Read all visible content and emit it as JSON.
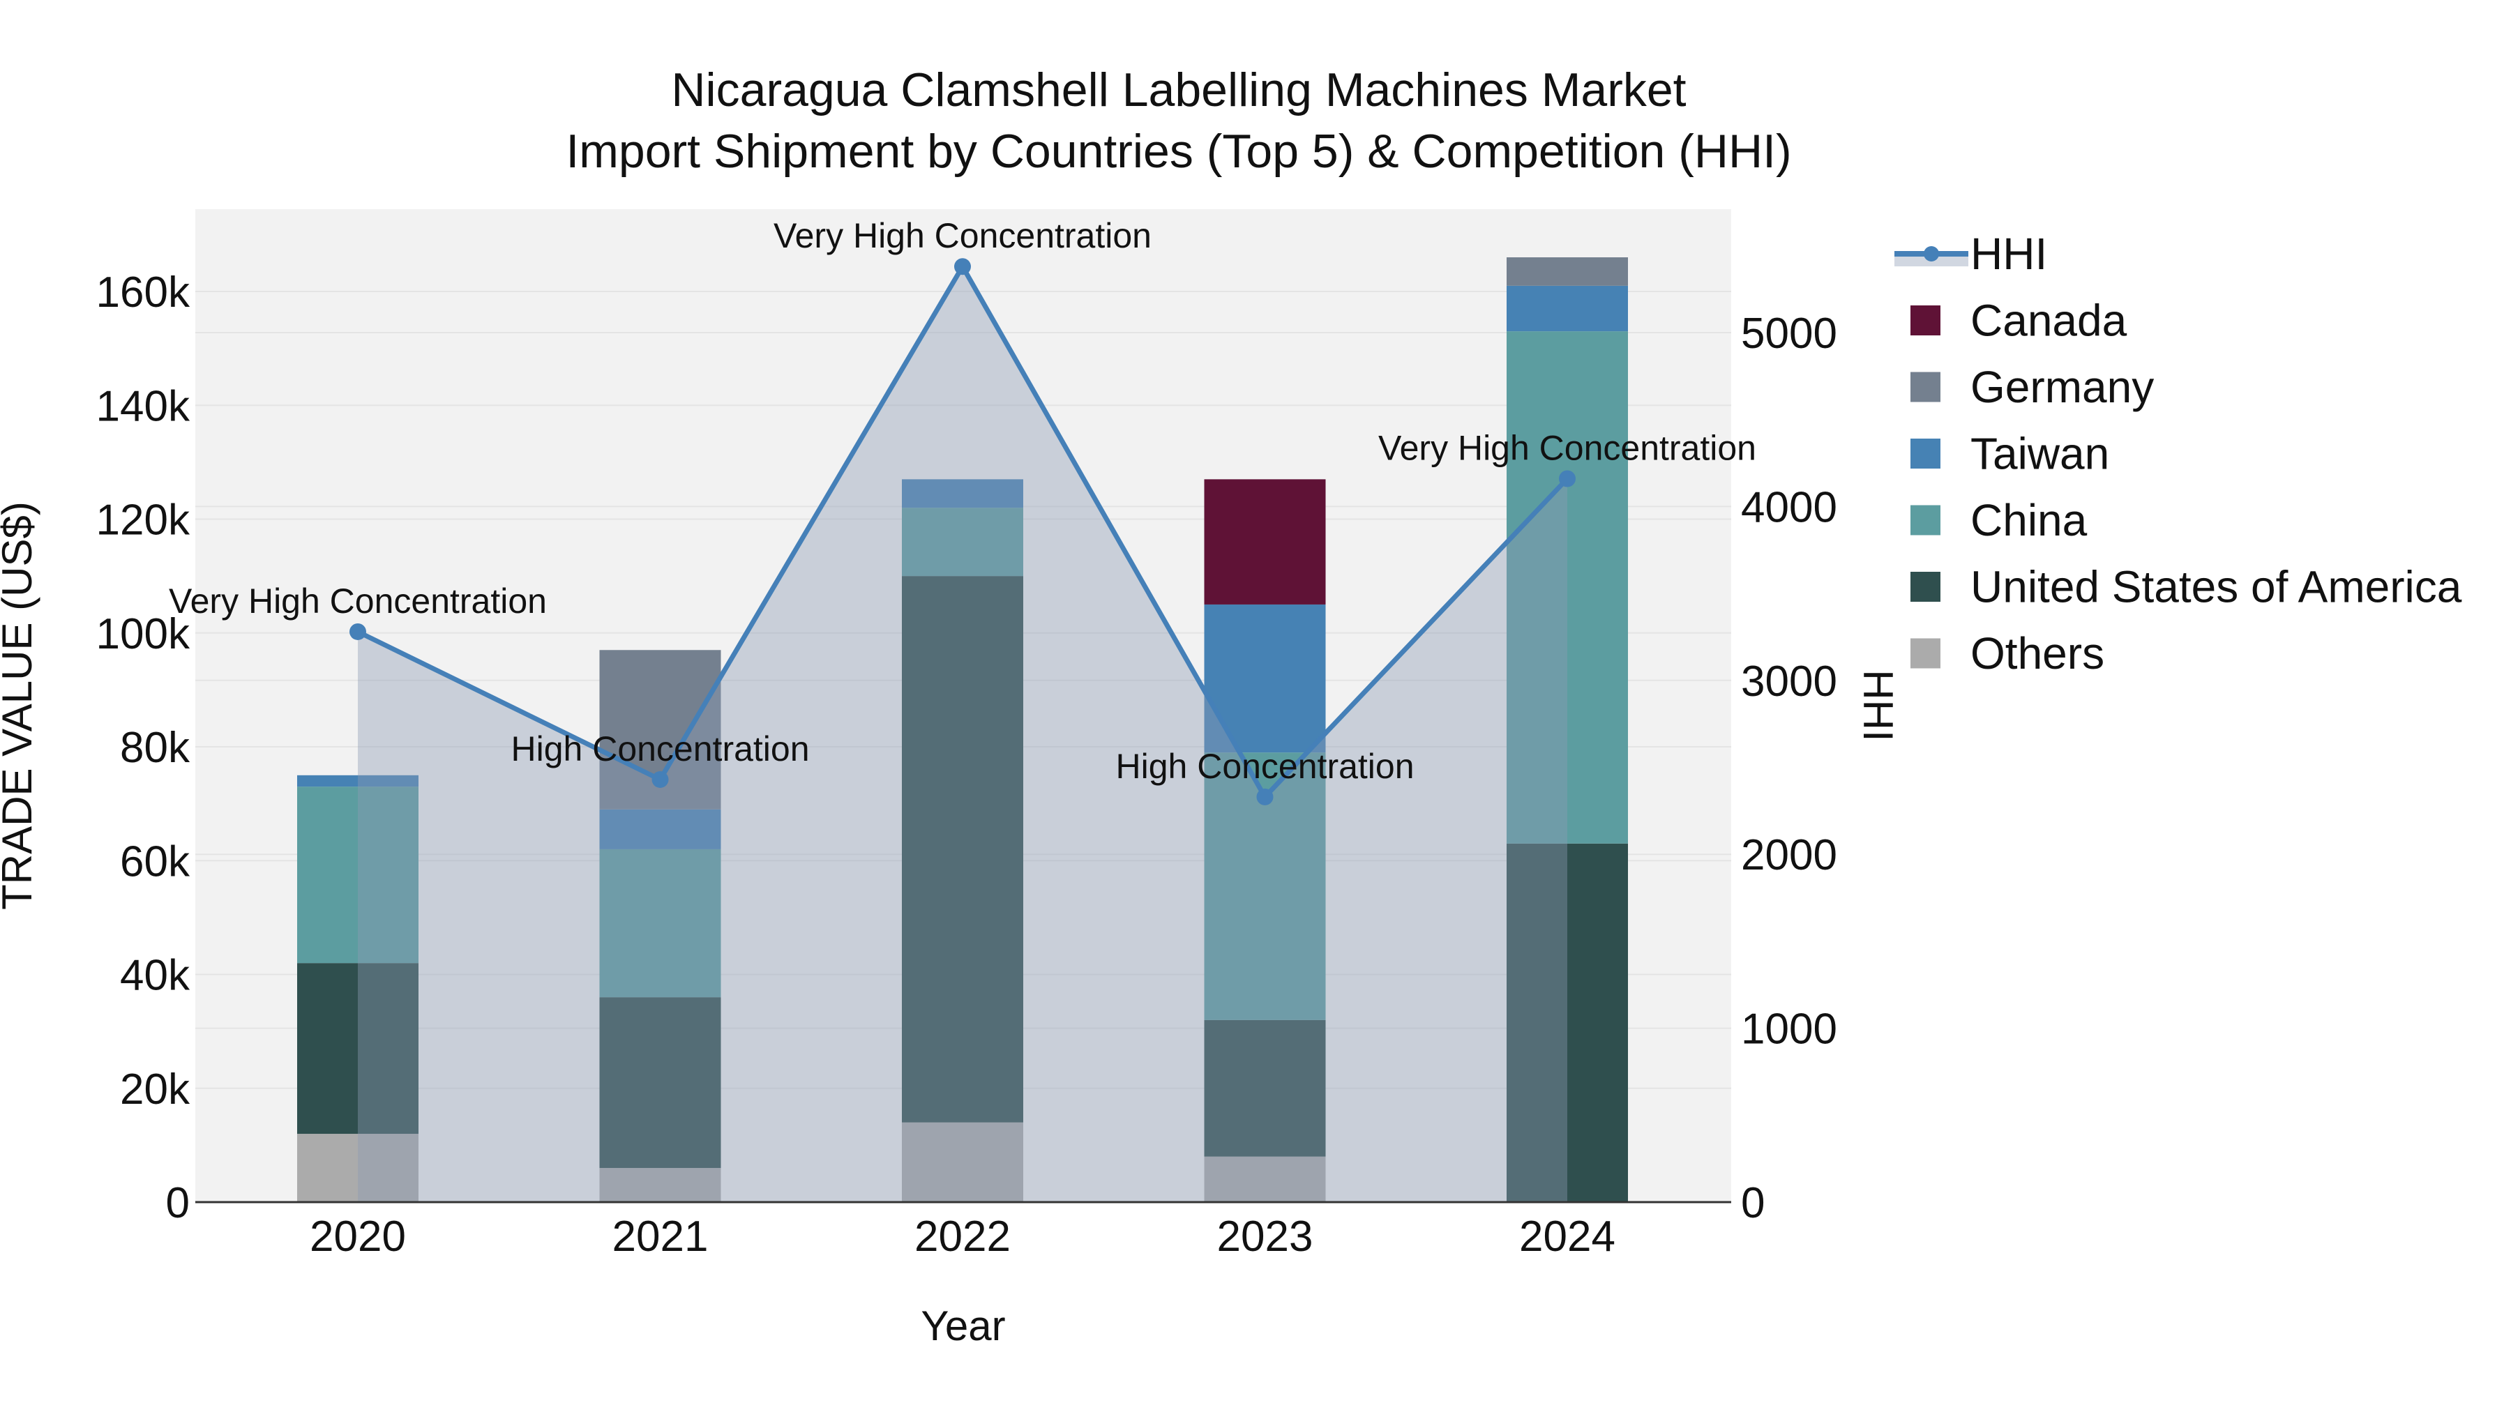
{
  "title": {
    "line1": "Nicaragua Clamshell Labelling Machines Market",
    "line2": "Import Shipment by Countries (Top 5) & Competition (HHI)"
  },
  "chart_data": {
    "type": "bar+line",
    "categories": [
      "2020",
      "2021",
      "2022",
      "2023",
      "2024"
    ],
    "x": {
      "title": "Year"
    },
    "y_left": {
      "title": "TRADE VALUE (US$)",
      "ticks": [
        0,
        20000,
        40000,
        60000,
        80000,
        100000,
        120000,
        140000,
        160000
      ],
      "tick_labels": [
        "0",
        "20k",
        "40k",
        "60k",
        "80k",
        "100k",
        "120k",
        "140k",
        "160k"
      ],
      "min": 0,
      "max": 174500,
      "grid": true
    },
    "y_right": {
      "title": "HHI",
      "ticks": [
        0,
        1000,
        2000,
        3000,
        4000,
        5000
      ],
      "tick_labels": [
        "0",
        "1000",
        "2000",
        "3000",
        "4000",
        "5000"
      ],
      "min": 0,
      "max": 5710,
      "grid": true
    },
    "series": [
      {
        "name": "Others",
        "color": "#ababab",
        "values": [
          12000,
          6000,
          14000,
          8000,
          0
        ]
      },
      {
        "name": "United States of America",
        "color": "#2f4f4e",
        "values": [
          30000,
          30000,
          96000,
          24000,
          63000
        ]
      },
      {
        "name": "China",
        "color": "#5c9da0",
        "values": [
          31000,
          26000,
          12000,
          47000,
          90000
        ]
      },
      {
        "name": "Taiwan",
        "color": "#4682b4",
        "values": [
          2000,
          7000,
          5000,
          26000,
          8000
        ]
      },
      {
        "name": "Germany",
        "color": "#74808f",
        "values": [
          0,
          28000,
          0,
          0,
          5000
        ]
      },
      {
        "name": "Canada",
        "color": "#5f1236",
        "values": [
          0,
          0,
          0,
          22000,
          0
        ]
      }
    ],
    "bar_totals": [
      75000,
      97000,
      127000,
      127000,
      166000
    ],
    "line": {
      "name": "HHI",
      "color": "#4580b8",
      "fill_color": "rgba(140,155,180,0.40)",
      "values": [
        3280,
        2430,
        5380,
        2330,
        4160
      ]
    },
    "annotations": [
      "Very High Concentration",
      "High Concentration",
      "Very High Concentration",
      "High Concentration",
      "Very High Concentration"
    ]
  },
  "legend": {
    "items": [
      {
        "label": "HHI",
        "type": "line",
        "color": "#4580b8"
      },
      {
        "label": "Canada",
        "type": "square",
        "color": "#5f1236"
      },
      {
        "label": "Germany",
        "type": "square",
        "color": "#74808f"
      },
      {
        "label": "Taiwan",
        "type": "square",
        "color": "#4682b4"
      },
      {
        "label": "China",
        "type": "square",
        "color": "#5c9da0"
      },
      {
        "label": "United States of America",
        "type": "square",
        "color": "#2f4f4e"
      },
      {
        "label": "Others",
        "type": "square",
        "color": "#ababab"
      }
    ]
  },
  "colors": {
    "plot_background": "#f2f2f2",
    "gridline": "#e4e4e4",
    "axis_line": "#333333",
    "text": "#111111"
  }
}
